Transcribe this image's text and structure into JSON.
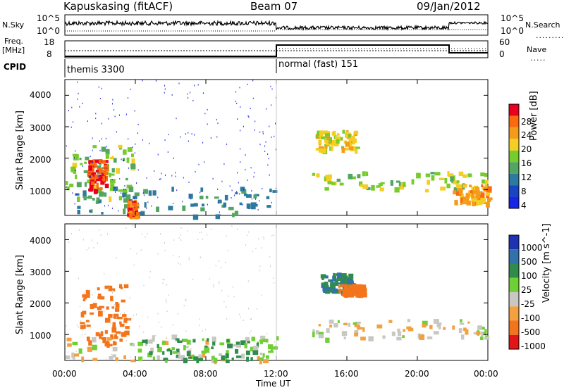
{
  "header": {
    "station": "Kapuskasing (fitACF)",
    "beam": "Beam 07",
    "date": "09/Jan/2012"
  },
  "summary": {
    "nsky_label": "N.Sky",
    "nsky_ticks": [
      "10^5",
      "10^0"
    ],
    "nsearch_label": "N.Search",
    "freq_label": "Freq.",
    "freq_unit": "[MHz]",
    "freq_ticks": [
      "18",
      "8"
    ],
    "nave_label": "Nave",
    "nave_ticks": [
      "60",
      "0"
    ],
    "cpid_label": "CPID",
    "cpid_segments": [
      {
        "label": "themis 3300",
        "start_h": 0,
        "end_h": 12
      },
      {
        "label": "normal (fast) 151",
        "start_h": 12,
        "end_h": 24
      }
    ]
  },
  "chart_data": [
    {
      "type": "heatmap",
      "title": "Power",
      "ylabel": "Slant Range [km]",
      "colorbar_label": "Power [dB]",
      "colorbar_ticks": [
        "28",
        "24",
        "20",
        "16",
        "12",
        "8",
        "4"
      ],
      "colorbar_colors": [
        "#e8001e",
        "#fb6a0e",
        "#f59b1b",
        "#f4ce23",
        "#76cc2a",
        "#54a561",
        "#2c7aa0",
        "#1846c0",
        "#1625e6"
      ],
      "xlim_hours": [
        0,
        24
      ],
      "ylim_km": [
        180,
        4500
      ],
      "yticks": [
        1000,
        2000,
        3000,
        4000
      ],
      "regions": [
        {
          "t0": 0.0,
          "t1": 3.9,
          "r0": 700,
          "r1": 2500,
          "level": 12
        },
        {
          "t0": 1.3,
          "t1": 2.3,
          "r0": 1000,
          "r1": 2000,
          "level": 26
        },
        {
          "t0": 0.5,
          "t1": 12.0,
          "r0": 200,
          "r1": 1100,
          "level": 6
        },
        {
          "t0": 3.5,
          "t1": 4.0,
          "r0": 200,
          "r1": 700,
          "level": 24
        },
        {
          "t0": 14.2,
          "t1": 16.5,
          "r0": 2300,
          "r1": 2900,
          "level": 16
        },
        {
          "t0": 14.0,
          "t1": 24.0,
          "r0": 1000,
          "r1": 1600,
          "level": 12
        },
        {
          "t0": 22.0,
          "t1": 24.0,
          "r0": 600,
          "r1": 1200,
          "level": 20
        }
      ]
    },
    {
      "type": "heatmap",
      "title": "Velocity",
      "ylabel": "Slant Range [km]",
      "colorbar_label": "Velocity [m s^-1]",
      "colorbar_ticks": [
        "1000",
        "500",
        "100",
        "25",
        "-25",
        "-100",
        "-500",
        "-1000"
      ],
      "colorbar_colors": [
        "#1d33b4",
        "#3271aa",
        "#2f8c4d",
        "#6fcf34",
        "#c8c7c1",
        "#f5a040",
        "#f3741a",
        "#e21518"
      ],
      "xlim_hours": [
        0,
        24
      ],
      "ylim_km": [
        180,
        4500
      ],
      "yticks": [
        1000,
        2000,
        3000,
        4000
      ],
      "xlabel": "Time UT",
      "xticks": [
        "00:00",
        "04:00",
        "08:00",
        "12:00",
        "16:00",
        "20:00",
        "00:00"
      ],
      "regions": [
        {
          "t0": 0.8,
          "t1": 3.6,
          "r0": 700,
          "r1": 2600,
          "velocity": -300
        },
        {
          "t0": 0.0,
          "t1": 12.0,
          "r0": 200,
          "r1": 1000,
          "velocity": 0
        },
        {
          "t0": 4.0,
          "t1": 12.0,
          "r0": 200,
          "r1": 900,
          "velocity": 80
        },
        {
          "t0": 14.5,
          "t1": 16.3,
          "r0": 2400,
          "r1": 3000,
          "velocity": 300
        },
        {
          "t0": 15.5,
          "t1": 17.0,
          "r0": 2300,
          "r1": 2600,
          "velocity": -200
        },
        {
          "t0": 14.0,
          "t1": 24.0,
          "r0": 900,
          "r1": 1500,
          "velocity": 0
        }
      ]
    }
  ]
}
